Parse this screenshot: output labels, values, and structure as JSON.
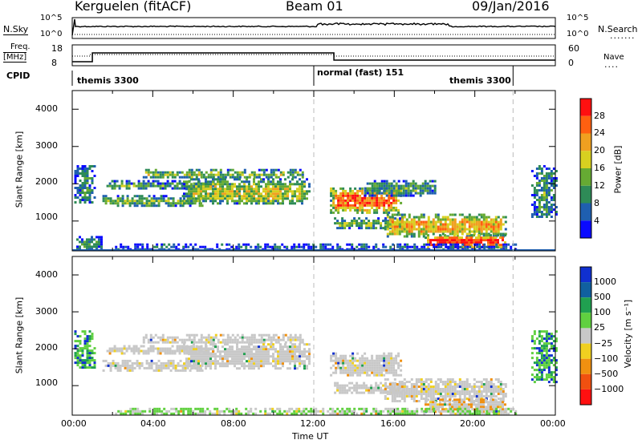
{
  "header": {
    "station": "Kerguelen (fitACF)",
    "beam": "Beam 01",
    "date": "09/Jan/2016"
  },
  "strip_labels": {
    "nsky": "N.Sky",
    "nsky_ticks": [
      "10^5",
      "10^0"
    ],
    "nsearch": "N.Search",
    "nsearch_ticks": [
      "10^5",
      "10^0"
    ],
    "freq": "Freq.",
    "freq_unit": "[MHz]",
    "freq_ticks": [
      "18",
      "8"
    ],
    "nave": "Nave",
    "nave_ticks": [
      "60",
      "0"
    ],
    "cpid": "CPID"
  },
  "cpid_segments": [
    {
      "label": "themis 3300"
    },
    {
      "label": "normal (fast) 151"
    },
    {
      "label": "themis 3300"
    }
  ],
  "chart_data": [
    {
      "type": "heatmap",
      "name": "power-panel",
      "ylabel": "Slant Range [km]",
      "xlabel": "",
      "xlim": [
        0,
        24
      ],
      "ylim": [
        200,
        4500
      ],
      "yticks": [
        "1000",
        "2000",
        "3000",
        "4000"
      ],
      "colorbar": {
        "label": "Power [dB]",
        "ticks": [
          "4",
          "8",
          "12",
          "16",
          "20",
          "24",
          "28"
        ],
        "colors": [
          "#0a0aff",
          "#1f5fb0",
          "#2e8b57",
          "#66aa33",
          "#d8d020",
          "#f0a020",
          "#ff6010",
          "#ff1010"
        ]
      },
      "scatter_bands": [
        {
          "t0": 0.1,
          "t1": 1.1,
          "r0": 1500,
          "r1": 2500,
          "level": 0.3
        },
        {
          "t0": 1.7,
          "t1": 7.0,
          "r0": 1850,
          "r1": 2100,
          "level": 0.35
        },
        {
          "t0": 3.5,
          "t1": 11.5,
          "r0": 2150,
          "r1": 2400,
          "level": 0.45
        },
        {
          "t0": 1.5,
          "t1": 6.5,
          "r0": 1400,
          "r1": 1700,
          "level": 0.4
        },
        {
          "t0": 5.5,
          "t1": 11.8,
          "r0": 1450,
          "r1": 2150,
          "level": 0.45
        },
        {
          "t0": 0.2,
          "t1": 1.5,
          "r0": 250,
          "r1": 600,
          "level": 0.25
        },
        {
          "t0": 12.8,
          "t1": 16.3,
          "r0": 1250,
          "r1": 1900,
          "level": 0.72
        },
        {
          "t0": 13.0,
          "t1": 16.5,
          "r0": 800,
          "r1": 1100,
          "level": 0.4
        },
        {
          "t0": 15.5,
          "t1": 21.5,
          "r0": 600,
          "r1": 1200,
          "level": 0.6
        },
        {
          "t0": 17.5,
          "t1": 21.5,
          "r0": 300,
          "r1": 650,
          "level": 0.85
        },
        {
          "t0": 14.5,
          "t1": 18.0,
          "r0": 1700,
          "r1": 2100,
          "level": 0.3
        },
        {
          "t0": 22.8,
          "t1": 24.0,
          "r0": 1100,
          "r1": 2500,
          "level": 0.35
        },
        {
          "t0": 2.0,
          "t1": 22.0,
          "r0": 220,
          "r1": 400,
          "level": 0.2
        }
      ]
    },
    {
      "type": "heatmap",
      "name": "velocity-panel",
      "ylabel": "Slant Range [km]",
      "xlabel": "Time UT",
      "xlim": [
        0,
        24
      ],
      "ylim": [
        200,
        4500
      ],
      "yticks": [
        "1000",
        "2000",
        "3000",
        "4000"
      ],
      "xticks": [
        "00:00",
        "04:00",
        "08:00",
        "12:00",
        "16:00",
        "20:00",
        "00:00"
      ],
      "colorbar": {
        "label": "Velocity [m s⁻¹]",
        "ticks": [
          "1000",
          "500",
          "100",
          "25",
          "−25",
          "−100",
          "−500",
          "−1000"
        ],
        "colors": [
          "#1030d0",
          "#1060a0",
          "#20a050",
          "#60d040",
          "#c8c8c8",
          "#f0d020",
          "#f09010",
          "#f05010",
          "#ff1010"
        ]
      },
      "scatter_bands": [
        {
          "t0": 0.1,
          "t1": 1.1,
          "r0": 1500,
          "r1": 2500,
          "level": 0.15
        },
        {
          "t0": 1.7,
          "t1": 7.0,
          "r0": 1850,
          "r1": 2100,
          "level": 0.5
        },
        {
          "t0": 3.5,
          "t1": 11.5,
          "r0": 2150,
          "r1": 2400,
          "level": 0.5
        },
        {
          "t0": 1.5,
          "t1": 6.5,
          "r0": 1400,
          "r1": 1700,
          "level": 0.5
        },
        {
          "t0": 5.5,
          "t1": 11.8,
          "r0": 1450,
          "r1": 2150,
          "level": 0.5
        },
        {
          "t0": 12.8,
          "t1": 16.3,
          "r0": 1250,
          "r1": 1900,
          "level": 0.5
        },
        {
          "t0": 13.0,
          "t1": 16.5,
          "r0": 800,
          "r1": 1100,
          "level": 0.5
        },
        {
          "t0": 15.5,
          "t1": 21.5,
          "r0": 600,
          "r1": 1200,
          "level": 0.5
        },
        {
          "t0": 17.5,
          "t1": 21.5,
          "r0": 300,
          "r1": 650,
          "level": 0.6
        },
        {
          "t0": 22.8,
          "t1": 24.0,
          "r0": 1100,
          "r1": 2500,
          "level": 0.35
        },
        {
          "t0": 2.0,
          "t1": 22.0,
          "r0": 220,
          "r1": 400,
          "level": 0.35
        }
      ]
    }
  ]
}
